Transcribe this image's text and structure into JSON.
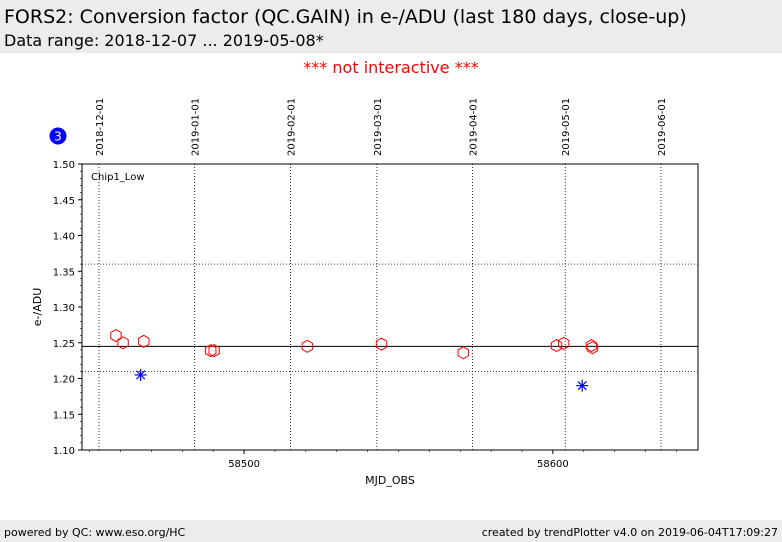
{
  "header": {
    "title": "FORS2: Conversion factor (QC.GAIN) in e-/ADU (last 180 days, close-up)",
    "subtitle": "Data range: 2018-12-07 ... 2019-05-08*",
    "notice": "*** not interactive ***"
  },
  "footer": {
    "left": "powered by QC: www.eso.org/HC",
    "right": "created by trendPlotter v4.0 on 2019-06-04T17:09:27"
  },
  "colors": {
    "series_primary": "#ff0000",
    "series_secondary": "#0000ff",
    "badge": "#0000ff",
    "band": "#ececec"
  },
  "chart_data": {
    "type": "scatter",
    "badge": "3",
    "panel_label": "Chip1_Low",
    "xlabel": "MJD_OBS",
    "ylabel": "e-/ADU",
    "xlim": [
      58447.5,
      58647
    ],
    "ylim": [
      1.1,
      1.5
    ],
    "yticks": [
      1.1,
      1.15,
      1.2,
      1.25,
      1.3,
      1.35,
      1.4,
      1.45,
      1.5
    ],
    "xticks": [
      58500,
      58600
    ],
    "date_ticks": [
      {
        "mjd": 58453,
        "label": "2018-12-01"
      },
      {
        "mjd": 58484,
        "label": "2019-01-01"
      },
      {
        "mjd": 58515,
        "label": "2019-02-01"
      },
      {
        "mjd": 58543,
        "label": "2019-03-01"
      },
      {
        "mjd": 58574,
        "label": "2019-04-01"
      },
      {
        "mjd": 58604,
        "label": "2019-05-01"
      },
      {
        "mjd": 58635,
        "label": "2019-06-01"
      }
    ],
    "reference_lines": {
      "mean": 1.245,
      "lower": 1.21,
      "upper": 1.36
    },
    "series": [
      {
        "marker": "hexagon",
        "color": "#ff0000",
        "points": [
          {
            "x": 58458.5,
            "y": 1.26
          },
          {
            "x": 58460.8,
            "y": 1.25
          },
          {
            "x": 58467.5,
            "y": 1.252
          },
          {
            "x": 58489.2,
            "y": 1.239
          },
          {
            "x": 58490.3,
            "y": 1.239
          },
          {
            "x": 58520.5,
            "y": 1.245
          },
          {
            "x": 58544.5,
            "y": 1.248
          },
          {
            "x": 58571.0,
            "y": 1.236
          },
          {
            "x": 58601.2,
            "y": 1.246
          },
          {
            "x": 58603.5,
            "y": 1.249
          },
          {
            "x": 58612.5,
            "y": 1.246
          },
          {
            "x": 58612.8,
            "y": 1.243
          }
        ]
      },
      {
        "marker": "asterisk",
        "color": "#0000ff",
        "points": [
          {
            "x": 58466.5,
            "y": 1.205
          },
          {
            "x": 58609.5,
            "y": 1.19
          }
        ]
      }
    ]
  }
}
